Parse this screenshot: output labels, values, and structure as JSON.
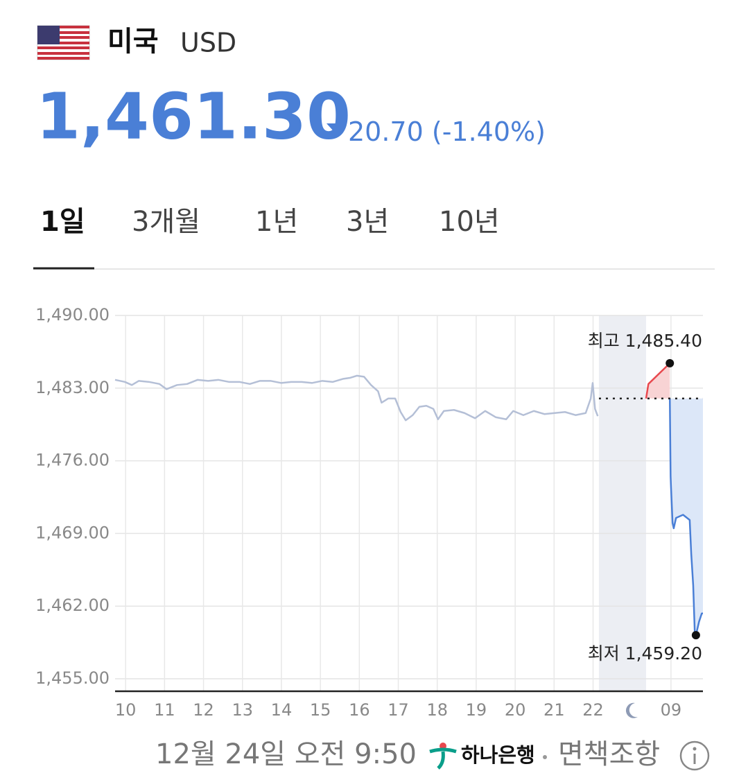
{
  "header": {
    "country": "미국",
    "currency": "USD"
  },
  "quote": {
    "price": "1,461.30",
    "change": "20.70",
    "change_pct": "(-1.40%)"
  },
  "tabs": [
    "1일",
    "3개월",
    "1년",
    "3년",
    "10년"
  ],
  "chart_data": {
    "type": "line",
    "xlim": [
      -0.27,
      14.82
    ],
    "ylim": [
      1453.8,
      1490
    ],
    "xticks": [
      {
        "value": 0,
        "label": "10"
      },
      {
        "value": 1,
        "label": "11"
      },
      {
        "value": 2,
        "label": "12"
      },
      {
        "value": 3,
        "label": "13"
      },
      {
        "value": 4,
        "label": "14"
      },
      {
        "value": 5,
        "label": "15"
      },
      {
        "value": 6,
        "label": "16"
      },
      {
        "value": 7,
        "label": "17"
      },
      {
        "value": 8,
        "label": "18"
      },
      {
        "value": 9,
        "label": "19"
      },
      {
        "value": 10,
        "label": "20"
      },
      {
        "value": 11,
        "label": "21"
      },
      {
        "value": 12,
        "label": "22"
      },
      {
        "value": 14,
        "label": "09"
      }
    ],
    "yticks": [
      {
        "value": 1490,
        "label": "1,490.00"
      },
      {
        "value": 1483,
        "label": "1,483.00"
      },
      {
        "value": 1476,
        "label": "1,476.00"
      },
      {
        "value": 1469,
        "label": "1,469.00"
      },
      {
        "value": 1462,
        "label": "1,462.00"
      },
      {
        "value": 1455,
        "label": "1,455.00"
      }
    ],
    "grid": true,
    "shaded_xrange": [
      12.15,
      13.36
    ],
    "baseline": 1482.0,
    "series": [
      {
        "color": "#b4bfd6",
        "x": [
          -0.27,
          -0.02,
          0.16,
          0.34,
          0.6,
          0.87,
          1.05,
          1.32,
          1.58,
          1.85,
          2.12,
          2.38,
          2.65,
          2.92,
          3.19,
          3.45,
          3.72,
          3.99,
          4.25,
          4.52,
          4.79,
          5.05,
          5.32,
          5.59,
          5.77,
          5.94,
          6.12,
          6.3,
          6.48,
          6.57,
          6.74,
          6.92,
          7.06,
          7.19,
          7.37,
          7.54,
          7.72,
          7.9,
          8.02,
          8.17,
          8.43,
          8.7,
          8.97,
          9.23,
          9.5,
          9.77,
          9.95,
          10.21,
          10.48,
          10.75,
          11.01,
          11.28,
          11.55,
          11.81,
          11.94,
          11.99,
          12.05,
          12.12
        ],
        "values": [
          1483.8,
          1483.6,
          1483.3,
          1483.7,
          1483.6,
          1483.4,
          1482.9,
          1483.3,
          1483.4,
          1483.8,
          1483.7,
          1483.8,
          1483.6,
          1483.6,
          1483.4,
          1483.7,
          1483.7,
          1483.5,
          1483.6,
          1483.6,
          1483.5,
          1483.7,
          1483.6,
          1483.9,
          1484.0,
          1484.2,
          1484.1,
          1483.3,
          1482.7,
          1481.6,
          1482.0,
          1482.0,
          1480.7,
          1479.9,
          1480.4,
          1481.2,
          1481.3,
          1481.0,
          1480.0,
          1480.8,
          1480.9,
          1480.6,
          1480.1,
          1480.8,
          1480.2,
          1480.0,
          1480.8,
          1480.4,
          1480.8,
          1480.5,
          1480.6,
          1480.7,
          1480.4,
          1480.6,
          1482.0,
          1483.5,
          1481.0,
          1480.3
        ]
      },
      {
        "color": "#e8484e",
        "fill": "#f8d3d4",
        "x": [
          13.36,
          13.42,
          13.97
        ],
        "values": [
          1482.0,
          1483.4,
          1485.4
        ]
      },
      {
        "color": "#4a7fd6",
        "fill": "#dce7f8",
        "x": [
          13.97,
          13.99,
          14.0,
          14.04,
          14.07,
          14.13,
          14.31,
          14.48,
          14.52,
          14.57,
          14.61,
          14.64,
          14.72,
          14.79,
          14.82
        ],
        "values": [
          1482.0,
          1474.5,
          1473.5,
          1470.0,
          1469.5,
          1470.5,
          1470.8,
          1470.3,
          1467.0,
          1464.0,
          1459.5,
          1459.2,
          1460.5,
          1461.3,
          1461.3
        ]
      }
    ],
    "annotations": [
      {
        "text": "최고 1,485.40",
        "x": 13.97,
        "y": 1485.4
      },
      {
        "text": "최저 1,459.20",
        "x": 14.64,
        "y": 1459.2
      }
    ]
  },
  "footer": {
    "date": "12월 24일 오전 9:50",
    "bank": "하나은행",
    "disclaimer": "면책조항"
  }
}
